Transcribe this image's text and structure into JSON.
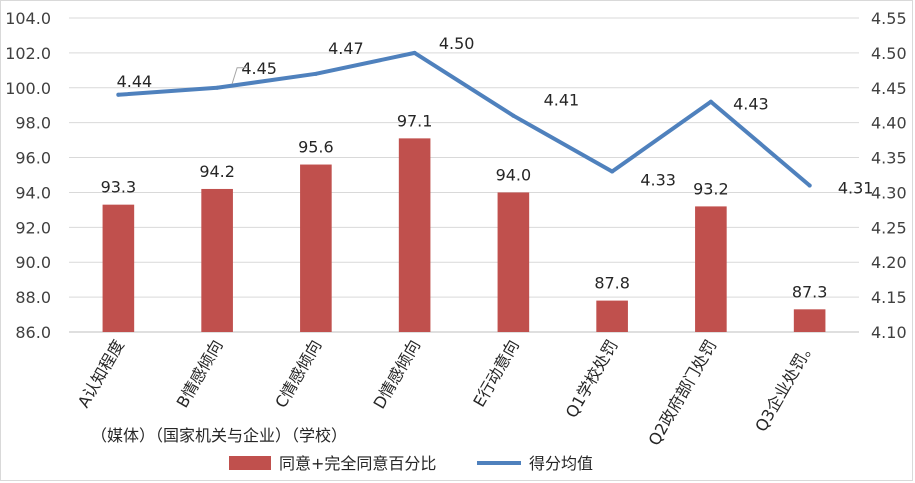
{
  "chart_data": {
    "type": "bar",
    "categories": [
      "A认知程度",
      "B情感倾向",
      "C情感倾向",
      "D情感倾向",
      "E行动意向",
      "Q1学校处罚",
      "Q2政府部门处罚",
      "Q3企业处罚。"
    ],
    "category_note": "（媒体）（国家机关与企业）（学校）",
    "series": [
      {
        "name": "同意+完全同意百分比",
        "type": "bar",
        "axis": "left",
        "color": "#c0504d",
        "values": [
          93.3,
          94.2,
          95.6,
          97.1,
          94.0,
          87.8,
          93.2,
          87.3
        ],
        "labels": [
          "93.3",
          "94.2",
          "95.6",
          "97.1",
          "94.0",
          "87.8",
          "93.2",
          "87.3"
        ]
      },
      {
        "name": "得分均值",
        "type": "line",
        "axis": "right",
        "color": "#4f81bd",
        "values": [
          4.44,
          4.45,
          4.47,
          4.5,
          4.41,
          4.33,
          4.43,
          4.31
        ],
        "labels": [
          "4.44",
          "4.45",
          "4.47",
          "4.50",
          "4.41",
          "4.33",
          "4.43",
          "4.31"
        ]
      }
    ],
    "y_left": {
      "min": 86.0,
      "max": 104.0,
      "step": 2.0,
      "ticks": [
        "86.0",
        "88.0",
        "90.0",
        "92.0",
        "94.0",
        "96.0",
        "98.0",
        "100.0",
        "102.0",
        "104.0"
      ]
    },
    "y_right": {
      "min": 4.1,
      "max": 4.55,
      "step": 0.05,
      "ticks": [
        "4.10",
        "4.15",
        "4.20",
        "4.25",
        "4.30",
        "4.35",
        "4.40",
        "4.45",
        "4.50",
        "4.55"
      ]
    },
    "grid": true,
    "legend": {
      "position": "bottom",
      "items": [
        "同意+完全同意百分比",
        "得分均值"
      ]
    }
  }
}
